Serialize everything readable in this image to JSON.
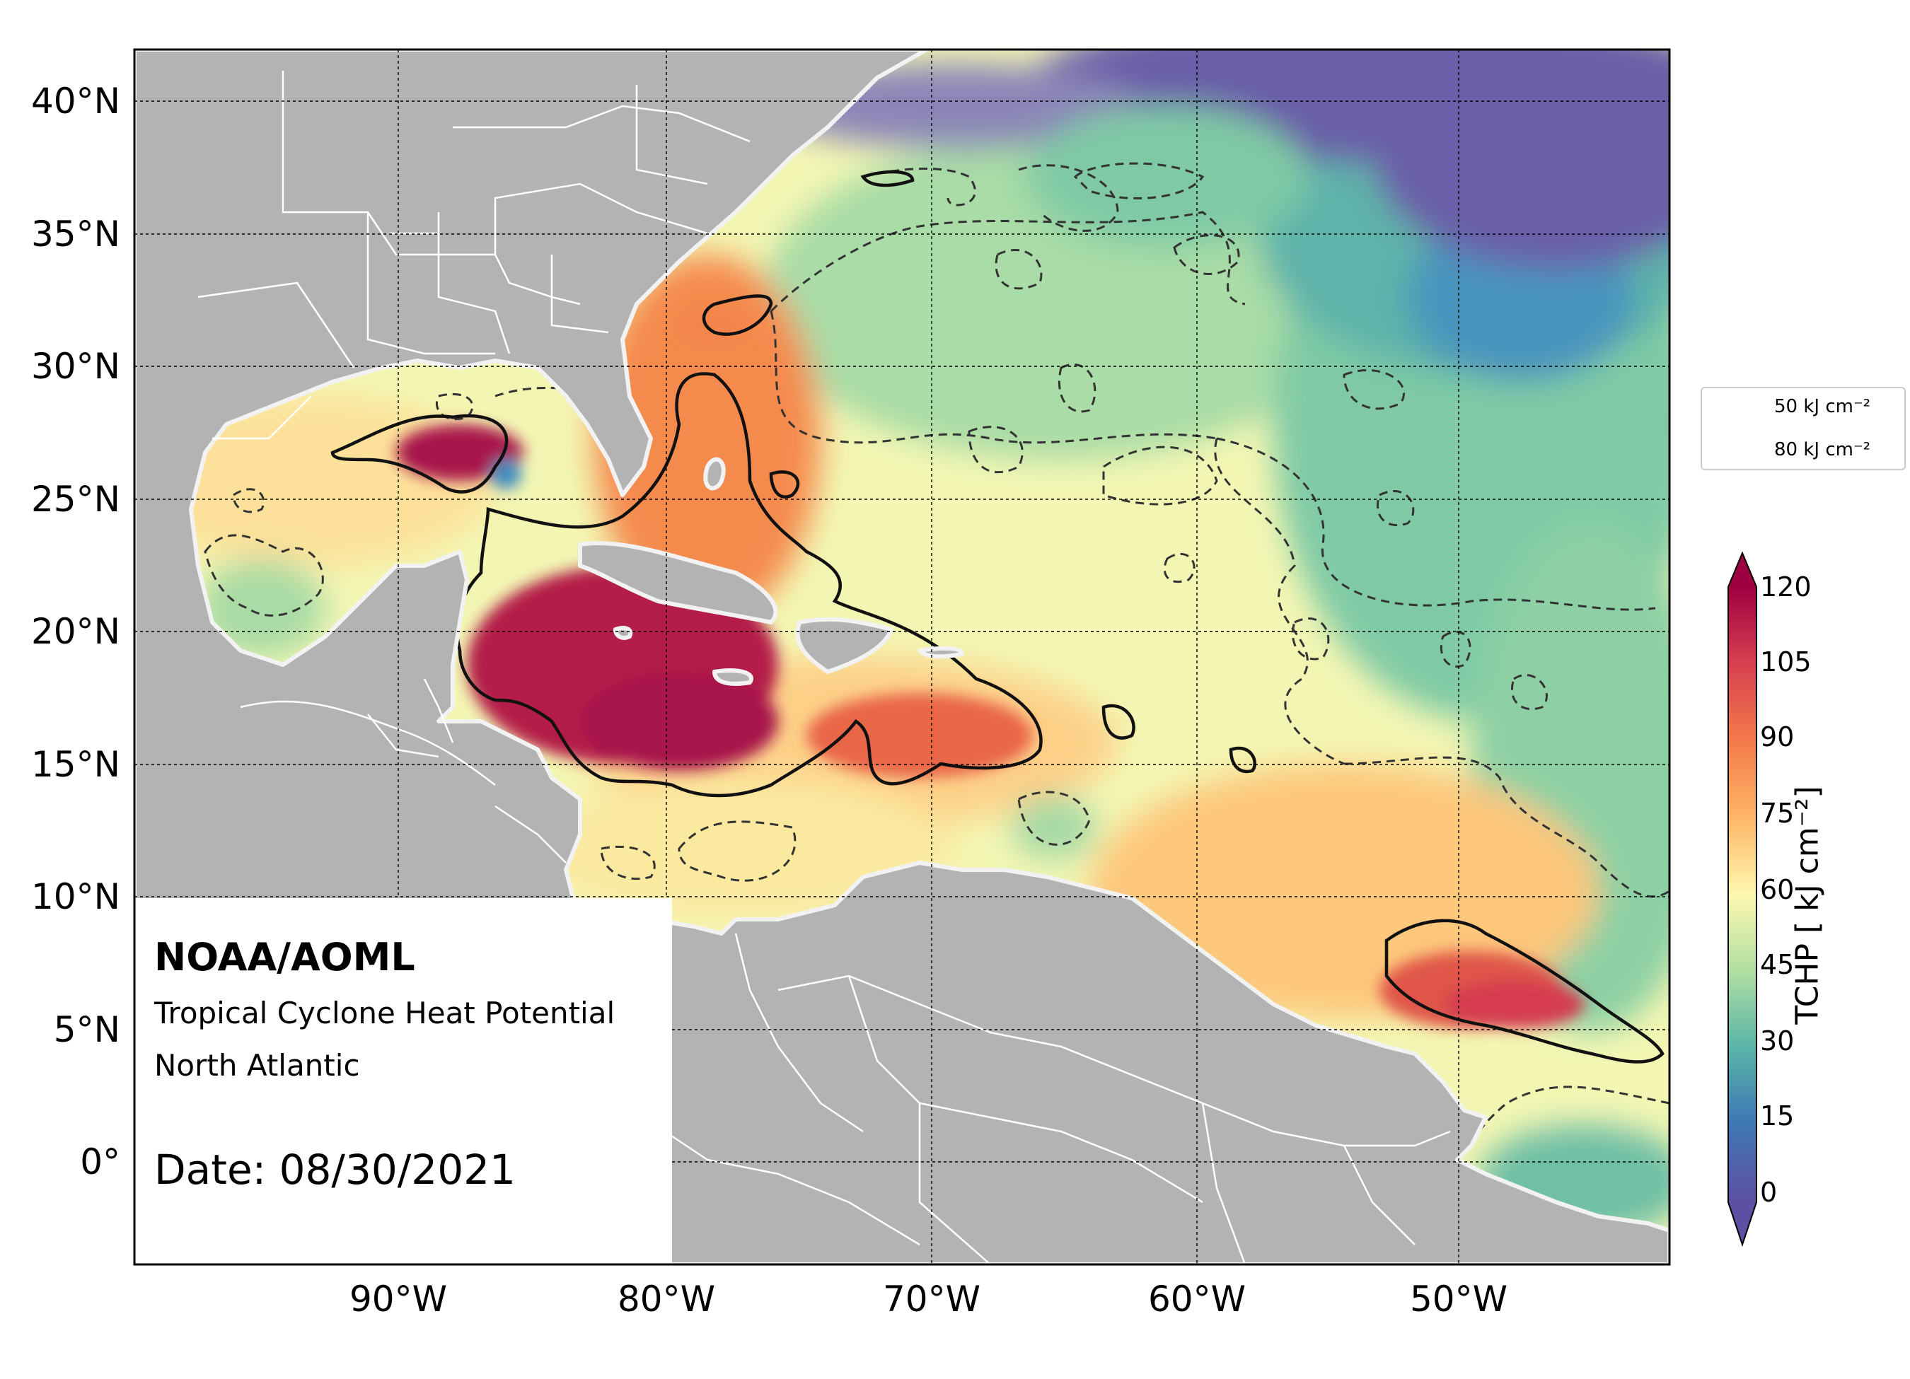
{
  "map": {
    "lat_labels": [
      "40°N",
      "35°N",
      "30°N",
      "25°N",
      "20°N",
      "15°N",
      "10°N",
      "5°N",
      "0°"
    ],
    "lon_labels": [
      "90°W",
      "80°W",
      "70°W",
      "60°W",
      "50°W"
    ],
    "colors": {
      "land": "#b3b3b3",
      "coast": "#f2f2f2",
      "border": "#ffffff",
      "ocean_low": "#5f4ea0",
      "ocean_blue": "#3f8cc0",
      "ocean_teal": "#66c2a5",
      "ocean_green": "#abdda4",
      "ocean_yellow": "#f6f7b0",
      "ocean_orange": "#fdb563",
      "ocean_red": "#e0574a",
      "ocean_max": "#a8144b"
    }
  },
  "info": {
    "org": "NOAA/AOML",
    "product": "Tropical Cyclone Heat Potential",
    "region": "North Atlantic",
    "date_text": "Date: 08/30/2021"
  },
  "legend": {
    "dashed_label": "50 kJ cm⁻²",
    "solid_label": "80 kJ cm⁻²"
  },
  "colorbar": {
    "title": "TCHP [ kJ cm⁻²]",
    "ticks": [
      "120",
      "105",
      "90",
      "75",
      "60",
      "45",
      "30",
      "15",
      "0"
    ],
    "colors": [
      "#5e4fa2",
      "#3f78b5",
      "#3f96b7",
      "#5ab4a9",
      "#87cfa4",
      "#b2e0a2",
      "#d9ef9b",
      "#f1f9a9",
      "#fef0a7",
      "#fed586",
      "#fdb365",
      "#f88d52",
      "#ea6147",
      "#d53e4f",
      "#b41f48",
      "#9e0142"
    ]
  }
}
